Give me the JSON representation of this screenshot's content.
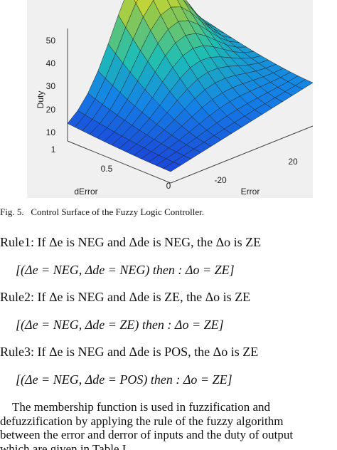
{
  "figure": {
    "z_label": "Duty",
    "z_ticks": [
      "50",
      "40",
      "30",
      "20",
      "10"
    ],
    "y_label": "dError",
    "y_ticks": [
      "1",
      "0.5",
      "0"
    ],
    "x_label": "Error",
    "x_ticks": [
      "-20",
      "20"
    ]
  },
  "caption": "Fig. 5.   Control Surface of the Fuzzy Logic Controller.",
  "rules": [
    {
      "text": "Rule1: If Δe is NEG and Δde is NEG, the Δo is ZE",
      "formula": "[(Δe = NEG, Δde = NEG) then : Δo = ZE]"
    },
    {
      "text": "Rule2: If Δe is NEG and Δde is ZE, the Δo is ZE",
      "formula": "[(Δe = NEG, Δde = ZE) then : Δo = ZE]"
    },
    {
      "text": "Rule3: If Δe is NEG and Δde is POS, the Δo is ZE",
      "formula": "[(Δe = NEG, Δde = POS) then : Δo = ZE]"
    }
  ],
  "paragraph": [
    "    The membership function is used in fuzzification and",
    "defuzzification by applying the rule of the fuzzy algorithm",
    "between the error and derror of inputs and the duty of output",
    "which are given in Table I."
  ]
}
